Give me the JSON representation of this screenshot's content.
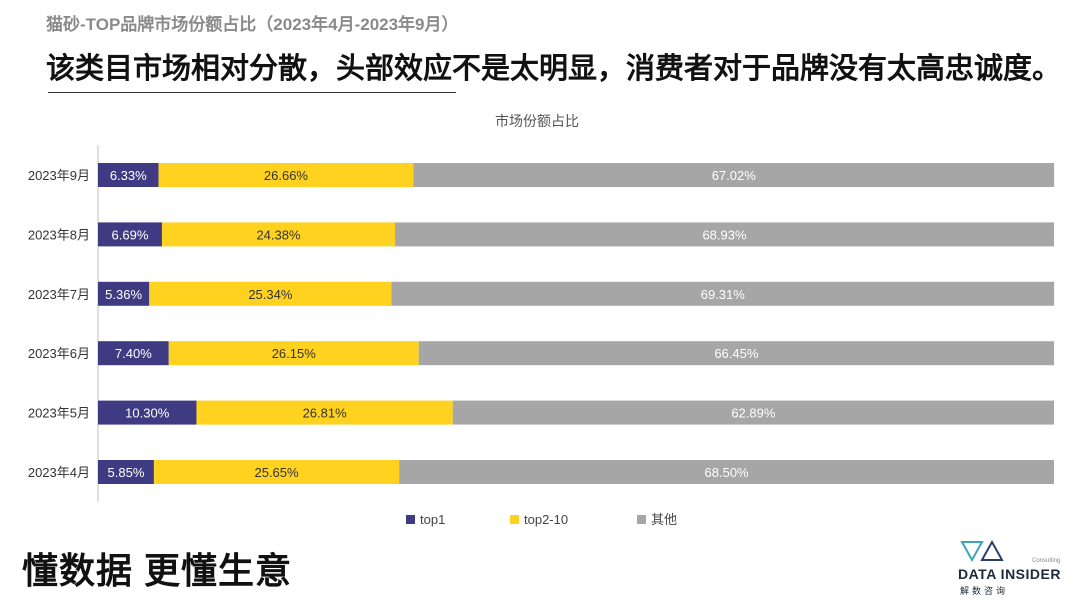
{
  "header": {
    "subtitle": "猫砂-TOP品牌市场份额占比（2023年4月-2023年9月）",
    "headline": "该类目市场相对分散，头部效应不是太明显，消费者对于品牌没有太高忠诚度。"
  },
  "footer": {
    "slogan": "懂数据 更懂生意",
    "logo_text": "DATA INSIDER",
    "logo_subtext": "解数咨询",
    "logo_consulting": "Consulting"
  },
  "chart_data": {
    "type": "bar",
    "orientation": "horizontal",
    "stacked": true,
    "title": "市场份额占比",
    "categories": [
      "2023年9月",
      "2023年8月",
      "2023年7月",
      "2023年6月",
      "2023年5月",
      "2023年4月"
    ],
    "series": [
      {
        "name": "top1",
        "color": "#3f3b82",
        "values": [
          6.33,
          6.69,
          5.36,
          7.4,
          10.3,
          5.85
        ],
        "labels": [
          "6.33%",
          "6.69%",
          "5.36%",
          "7.40%",
          "10.30%",
          "5.85%"
        ]
      },
      {
        "name": "top2-10",
        "color": "#ffd21f",
        "values": [
          26.66,
          24.38,
          25.34,
          26.15,
          26.81,
          25.65
        ],
        "labels": [
          "26.66%",
          "24.38%",
          "25.34%",
          "26.15%",
          "26.81%",
          "25.65%"
        ]
      },
      {
        "name": "其他",
        "color": "#a6a6a6",
        "values": [
          67.02,
          68.93,
          69.31,
          66.45,
          62.89,
          68.5
        ],
        "labels": [
          "67.02%",
          "68.93%",
          "69.31%",
          "66.45%",
          "62.89%",
          "68.50%"
        ]
      }
    ],
    "xlim": [
      0,
      100
    ],
    "legend_position": "bottom",
    "grid": false
  }
}
